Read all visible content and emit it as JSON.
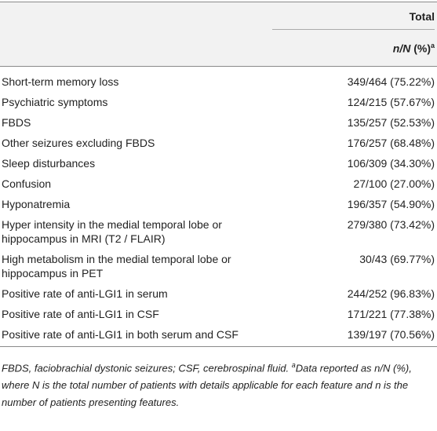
{
  "header": {
    "column_title": "Total",
    "subheader": {
      "italic": "n/N",
      "rest": " (%)",
      "superscript": "a"
    }
  },
  "rows": [
    [
      "Short-term memory loss",
      "349/464 (75.22%)"
    ],
    [
      "Psychiatric symptoms",
      "124/215 (57.67%)"
    ],
    [
      "FBDS",
      "135/257 (52.53%)"
    ],
    [
      "Other seizures excluding FBDS",
      "176/257 (68.48%)"
    ],
    [
      "Sleep disturbances",
      "106/309 (34.30%)"
    ],
    [
      "Confusion",
      "27/100 (27.00%)"
    ],
    [
      "Hyponatremia",
      "196/357 (54.90%)"
    ],
    [
      "Hyper intensity in the medial temporal lobe or hippocampus in MRI (T2 / FLAIR)",
      "279/380 (73.42%)"
    ],
    [
      "High metabolism in the medial temporal lobe or hippocampus in PET",
      "30/43 (69.77%)"
    ],
    [
      "Positive rate of anti-LGI1 in serum",
      "244/252 (96.83%)"
    ],
    [
      "Positive rate of anti-LGI1 in CSF",
      "171/221 (77.38%)"
    ],
    [
      "Positive rate of anti-LGI1 in both serum and CSF",
      "139/197 (70.56%)"
    ]
  ],
  "footnote": {
    "before": "FBDS, faciobrachial dystonic seizures; CSF, cerebrospinal fluid. ",
    "superscript": "a",
    "after": "Data reported as n/N (%), where N is the total number of patients with details applicable for each feature and n is the number of patients presenting features."
  }
}
